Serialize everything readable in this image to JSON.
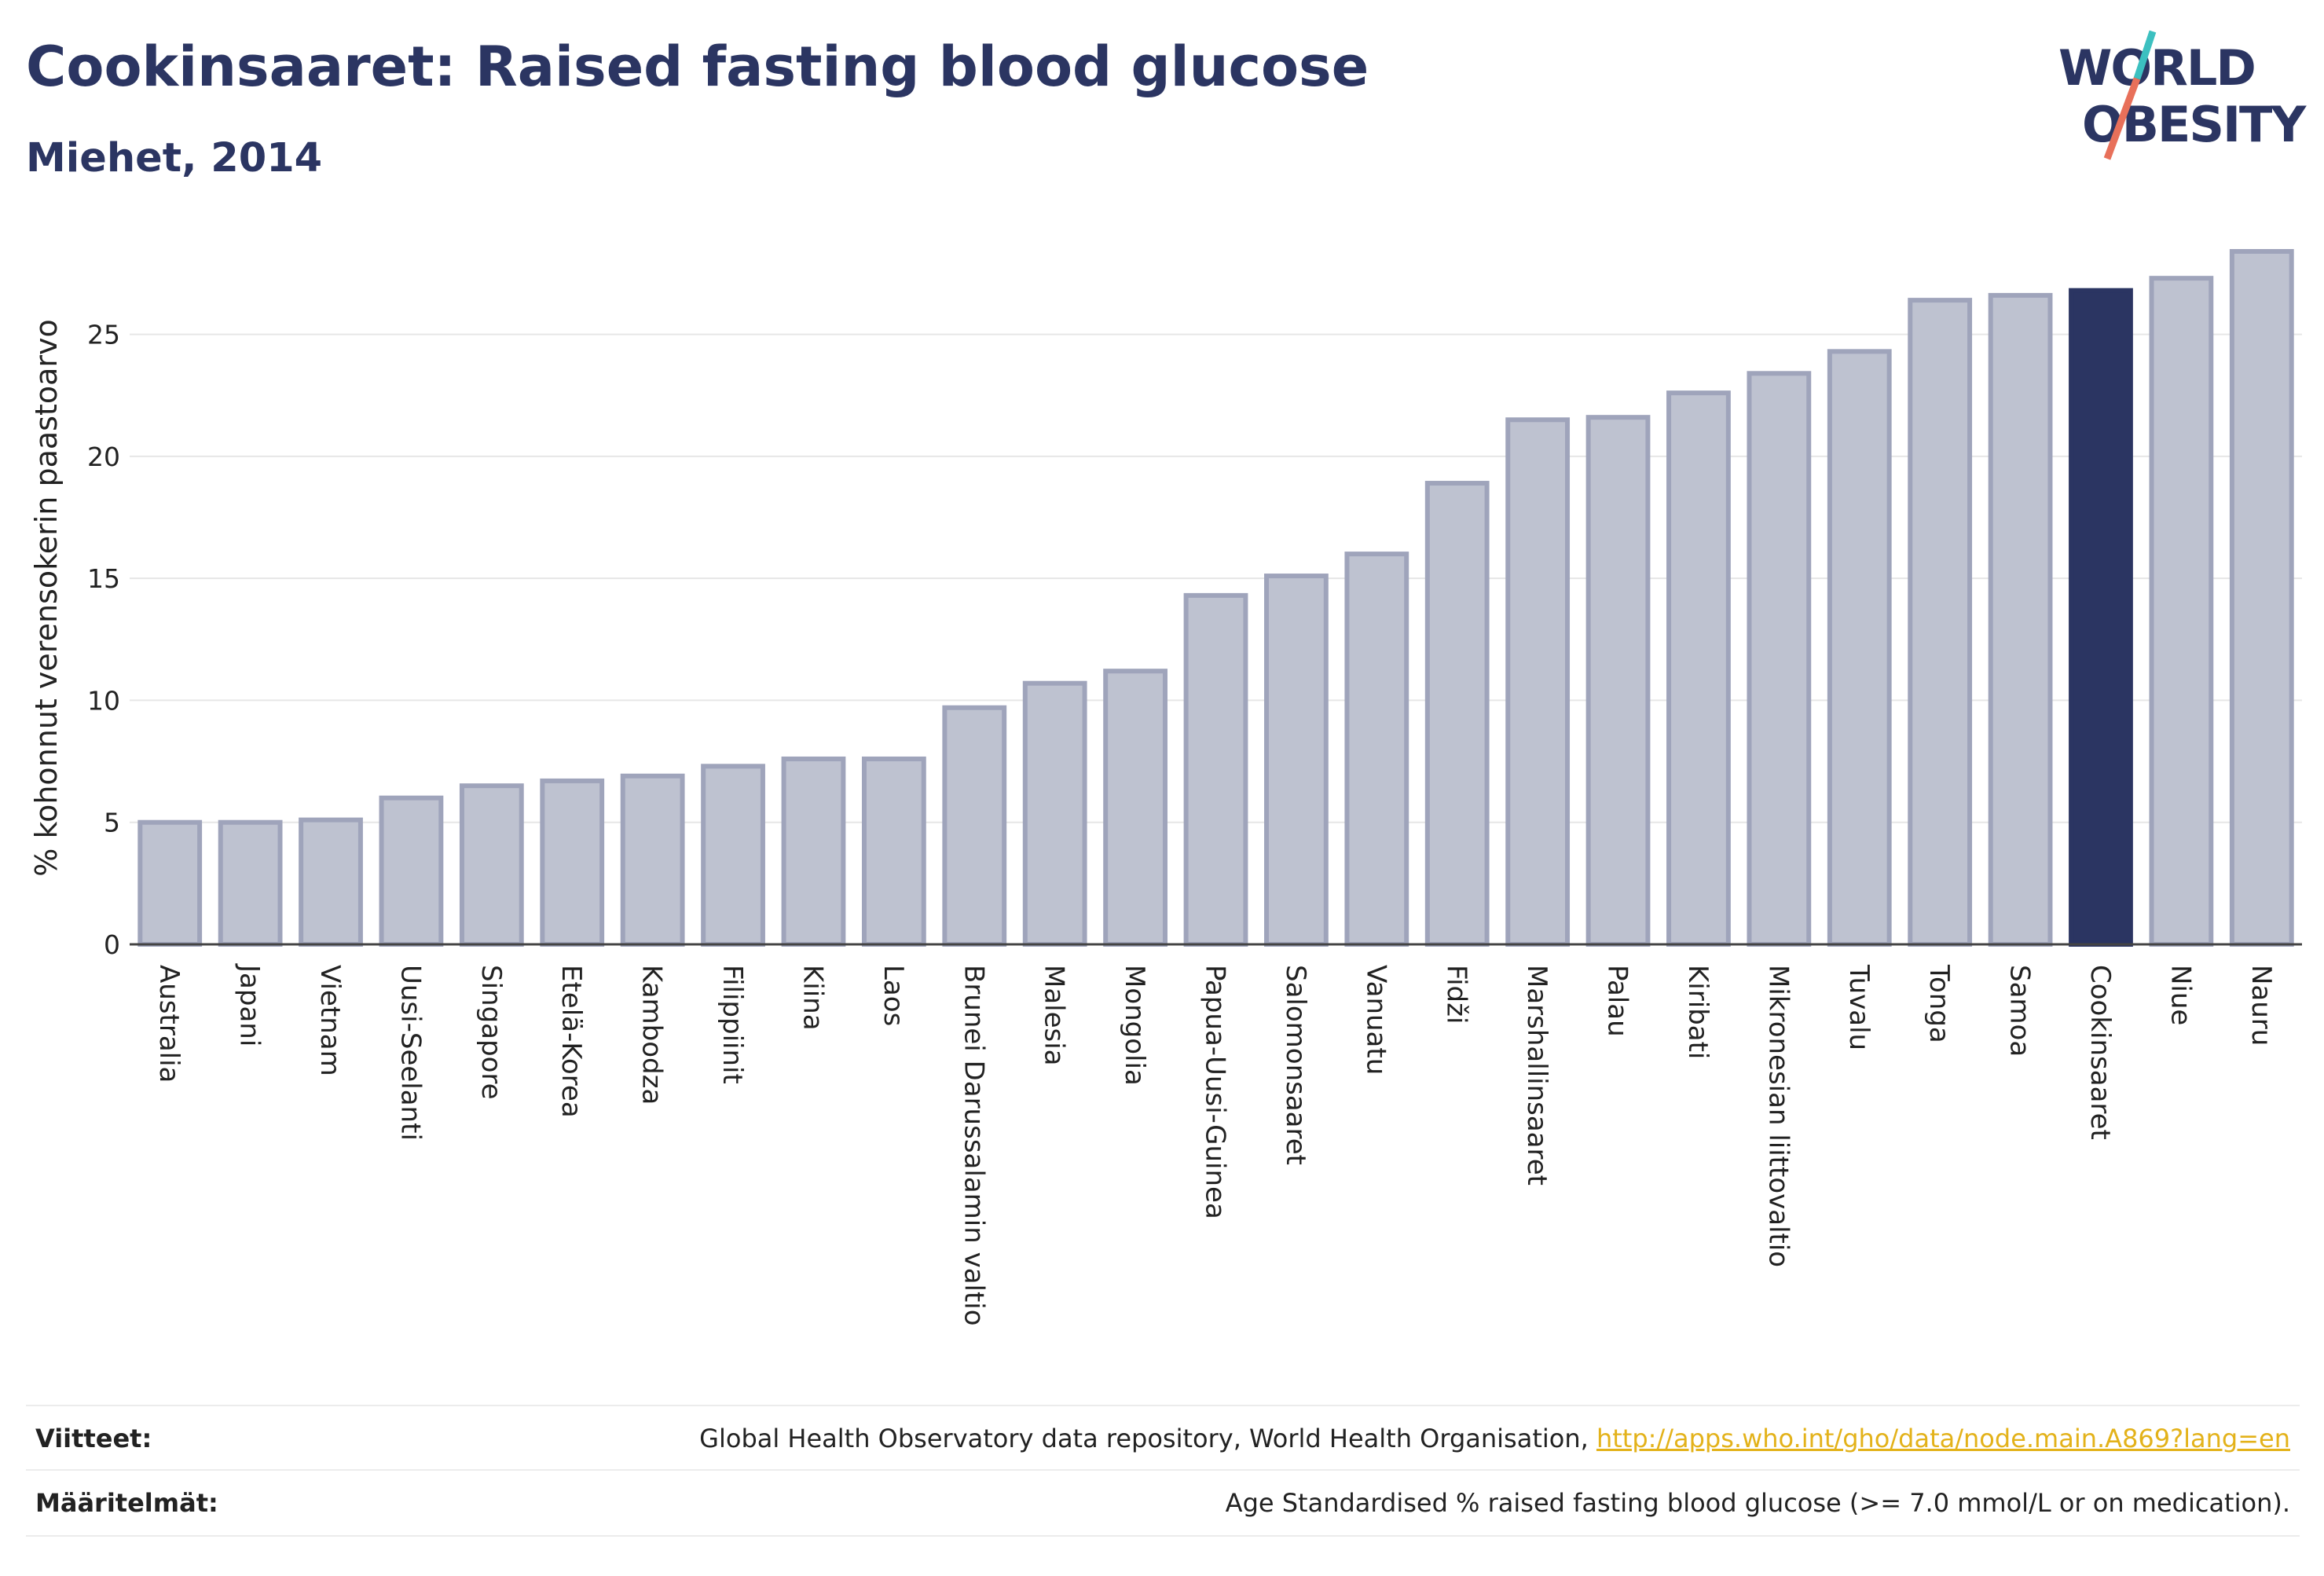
{
  "header": {
    "title": "Cookinsaaret: Raised fasting blood glucose",
    "subtitle": "Miehet, 2014"
  },
  "logo": {
    "line1": "WORLD",
    "line2": "OBESITY"
  },
  "colors": {
    "bar": "#bec2d0",
    "bar_border": "#9fa4bb",
    "highlight": "#2b3562",
    "accent_teal": "#3cc0c0",
    "accent_red": "#e8705a",
    "grid": "#e6e6e6"
  },
  "chart_data": {
    "type": "bar",
    "categories": [
      "Australia",
      "Japani",
      "Vietnam",
      "Uusi-Seelanti",
      "Singapore",
      "Etelä-Korea",
      "Kambodza",
      "Filippiinit",
      "Kiina",
      "Laos",
      "Brunei Darussalamin valtio",
      "Malesia",
      "Mongolia",
      "Papua-Uusi-Guinea",
      "Salomonsaaret",
      "Vanuatu",
      "Fidži",
      "Marshallinsaaret",
      "Palau",
      "Kiribati",
      "Mikronesian liittovaltio",
      "Tuvalu",
      "Tonga",
      "Samoa",
      "Cookinsaaret",
      "Niue",
      "Nauru"
    ],
    "values": [
      5.0,
      5.0,
      5.1,
      6.0,
      6.5,
      6.7,
      6.9,
      7.3,
      7.6,
      7.6,
      9.7,
      10.7,
      11.2,
      14.3,
      15.1,
      16.0,
      18.9,
      21.5,
      21.6,
      22.6,
      23.4,
      24.3,
      26.4,
      26.6,
      26.8,
      27.3,
      28.4
    ],
    "highlight": "Cookinsaaret",
    "ylabel": "% kohonnut verensokerin paastoarvo",
    "yticks": [
      0,
      5,
      10,
      15,
      20,
      25
    ],
    "ylim": [
      0,
      28.4
    ],
    "grid": true,
    "legend": "none"
  },
  "footer": {
    "references_label": "Viitteet:",
    "references_text": "Global Health Observatory data repository, World Health Organisation, ",
    "references_link": "http://apps.who.int/gho/data/node.main.A869?lang=en",
    "definitions_label": "Määritelmät:",
    "definitions_text": "Age Standardised % raised fasting blood glucose (>= 7.0 mmol/L or on medication)."
  }
}
